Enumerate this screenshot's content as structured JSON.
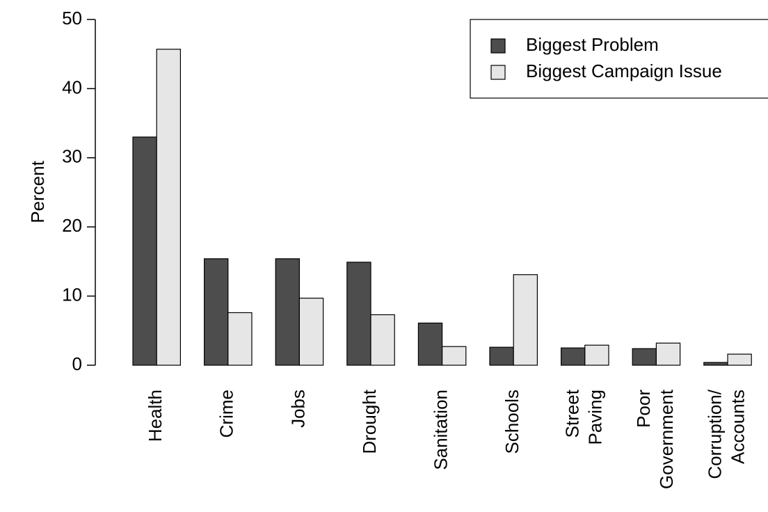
{
  "chart_data": {
    "type": "bar",
    "y_label": "Percent",
    "categories": [
      "Health",
      "Crime",
      "Jobs",
      "Drought",
      "Sanitation",
      "Schools",
      "Street\nPaving",
      "Poor\nGovernment",
      "Corruption/\nAccounts"
    ],
    "series": [
      {
        "name": "Biggest Problem",
        "color": "#4d4d4d",
        "values": [
          33.0,
          15.4,
          15.4,
          14.9,
          6.1,
          2.6,
          2.5,
          2.4,
          0.4
        ]
      },
      {
        "name": "Biggest Campaign Issue",
        "color": "#e6e6e6",
        "values": [
          45.7,
          7.6,
          9.7,
          7.3,
          2.7,
          13.1,
          2.9,
          3.2,
          1.6
        ]
      }
    ],
    "ylim": [
      0,
      50
    ],
    "yticks": [
      0,
      10,
      20,
      30,
      40,
      50
    ],
    "legend": "top-right"
  }
}
